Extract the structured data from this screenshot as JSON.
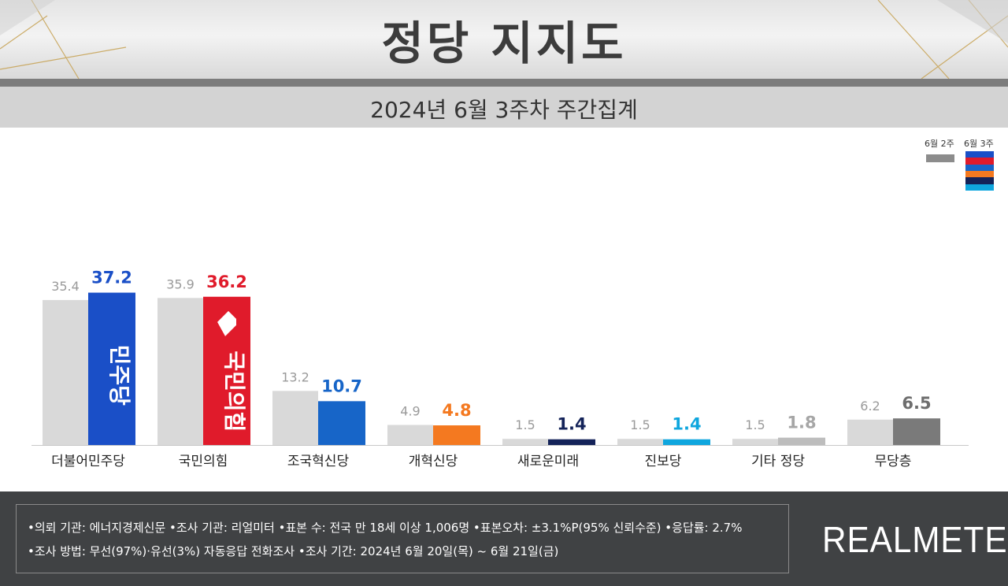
{
  "header": {
    "title": "정당 지지도",
    "subtitle": "2024년 6월 3주차 주간집계"
  },
  "legend": {
    "prev_label": "6월 2주",
    "curr_label": "6월 3주",
    "curr_swatch_colors": [
      "#1a4fc7",
      "#e01b2b",
      "#1765c8",
      "#f47920",
      "#142359",
      "#0fa6de"
    ]
  },
  "colors": {
    "prev_bar": "#d9d9d9",
    "prev_label": "#9a9a9a"
  },
  "chart_data": {
    "type": "bar",
    "categories": [
      "더불어민주당",
      "국민의힘",
      "조국혁신당",
      "개혁신당",
      "새로운미래",
      "진보당",
      "기타 정당",
      "무당층"
    ],
    "series": [
      {
        "name": "6월 2주",
        "values": [
          35.4,
          35.9,
          13.2,
          4.9,
          1.5,
          1.5,
          1.5,
          6.2
        ]
      },
      {
        "name": "6월 3주",
        "values": [
          37.2,
          36.2,
          10.7,
          4.8,
          1.4,
          1.4,
          1.8,
          6.5
        ]
      }
    ],
    "curr_colors": [
      "#1a4fc7",
      "#e01b2b",
      "#1765c8",
      "#f47920",
      "#142359",
      "#0fa6de",
      "#bdbdbd",
      "#7a7a7a"
    ],
    "curr_label_colors": [
      "#1a4fc7",
      "#e01b2b",
      "#1765c8",
      "#f47920",
      "#142359",
      "#0fa6de",
      "#a6a6a6",
      "#6e6e6e"
    ],
    "bar_logos": [
      "민주당",
      "국민의힘"
    ],
    "ylim": [
      0,
      40
    ],
    "grid": false
  },
  "footer": {
    "line1": "•의뢰 기관: 에너지경제신문 •조사 기관: 리얼미터 •표본 수: 전국 만 18세 이상 1,006명 •표본오차: ±3.1%P(95% 신뢰수준) •응답률: 2.7%",
    "line2": "•조사 방법: 무선(97%)·유선(3%) 자동응답 전화조사 •조사 기간: 2024년 6월 20일(목) ~ 6월 21일(금)",
    "brand": "REALMETER"
  }
}
